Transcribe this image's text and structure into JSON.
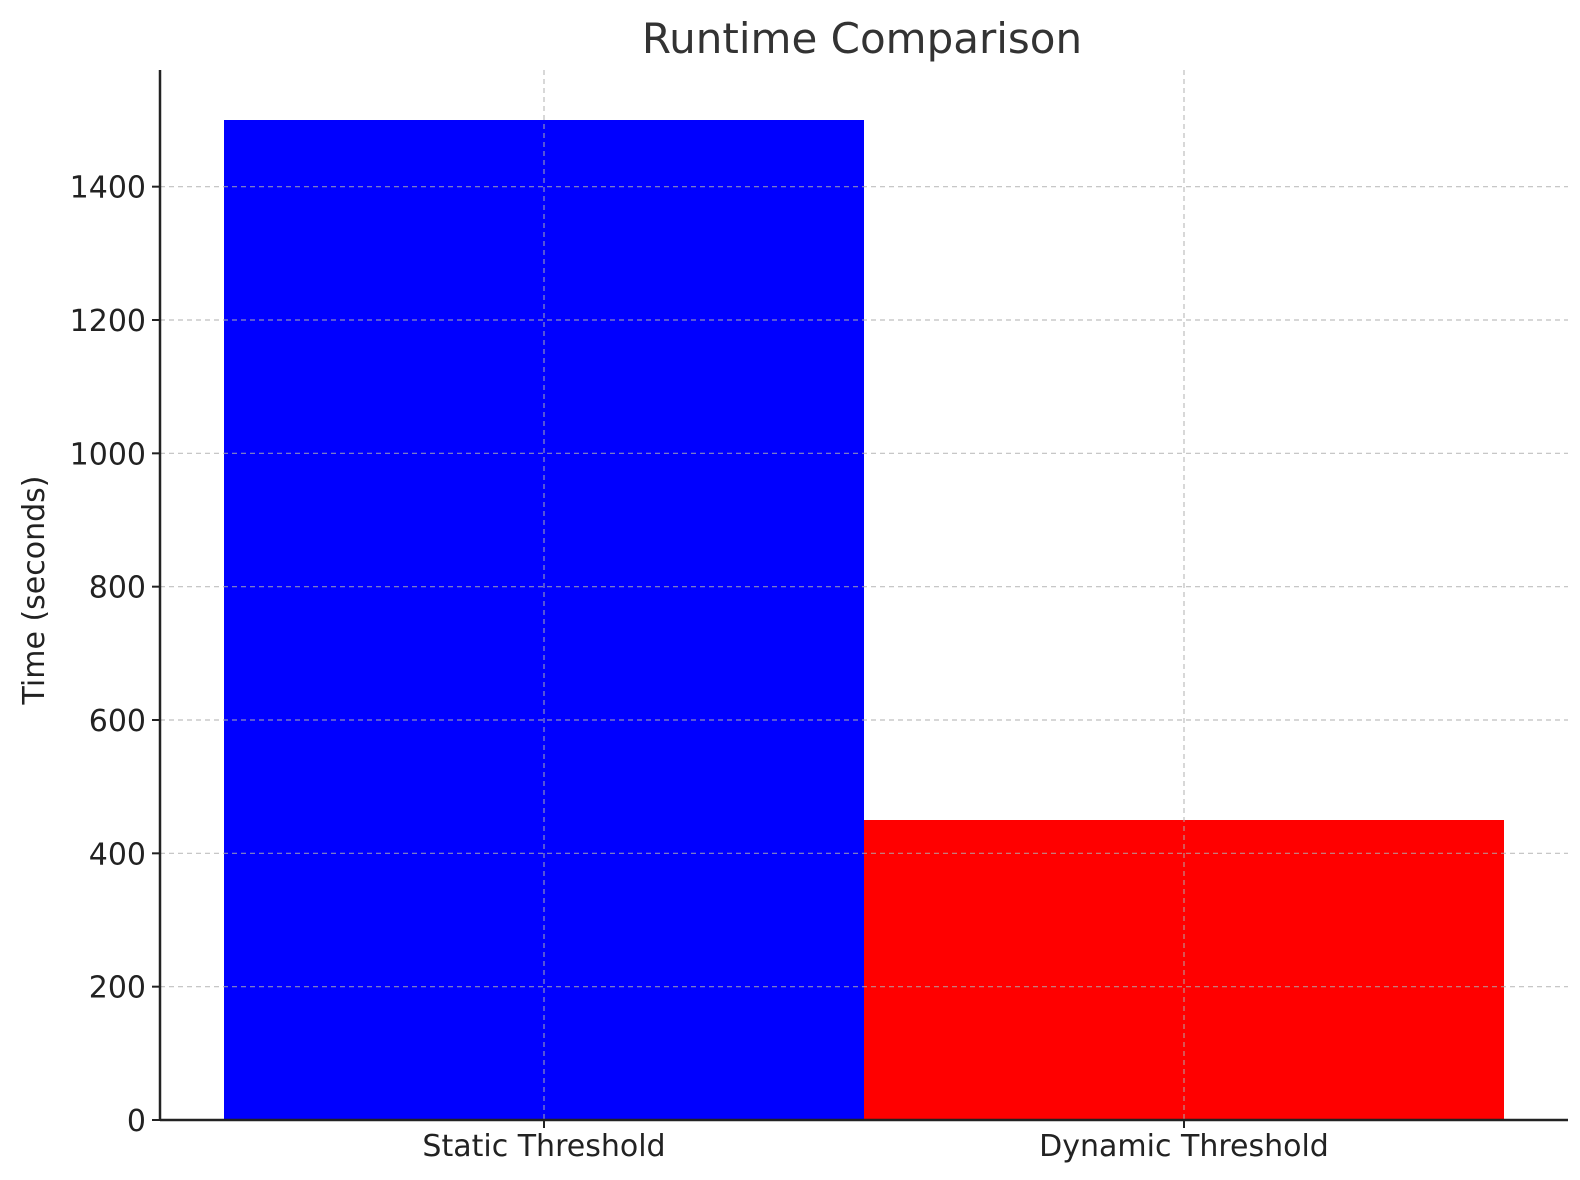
{
  "chart_data": {
    "type": "bar",
    "title": "Runtime Comparison",
    "xlabel": "",
    "ylabel": "Time (seconds)",
    "categories": [
      "Static Threshold",
      "Dynamic Threshold"
    ],
    "values": [
      1500,
      450
    ],
    "bar_colors": [
      "#0000ff",
      "#ff0000"
    ],
    "ylim": [
      0,
      1575
    ],
    "yticks": [
      0,
      200,
      400,
      600,
      800,
      1000,
      1200,
      1400
    ],
    "grid": true,
    "grid_color": "#b0b0b0",
    "grid_style": "dashed",
    "legend": "none"
  }
}
